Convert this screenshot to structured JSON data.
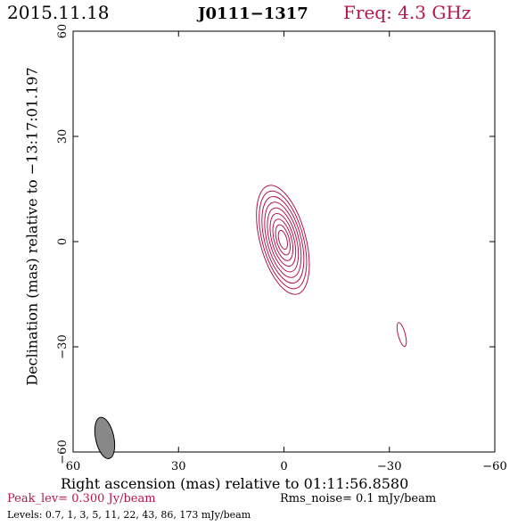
{
  "header": {
    "date": "2015.11.18",
    "source": "J0111−1317",
    "freq": "Freq: 4.3 GHz"
  },
  "footer": {
    "peak": "Peak_lev=  0.300 Jy/beam",
    "rms": "Rms_noise=  0.1 mJy/beam",
    "levels": "Levels: 0.7,   1,   3,   5,  11,  22,  43,  86, 173 mJy/beam"
  },
  "colors": {
    "contour": "#b5174a",
    "beam": "#888888",
    "accent": "#b5174a"
  },
  "chart_data": {
    "type": "contour",
    "xlabel": "Right ascension (mas) relative to 01:11:56.8580",
    "ylabel": "Declination (mas) relative to −13:17:01.197",
    "xlim": [
      60,
      -60
    ],
    "ylim": [
      -60,
      60
    ],
    "xticks": [
      60,
      30,
      0,
      -30,
      -60
    ],
    "yticks": [
      60,
      30,
      0,
      -30,
      -60
    ],
    "xtick_labels": [
      "60",
      "30",
      "0",
      "−30",
      "−60"
    ],
    "ytick_labels": [
      "60",
      "30",
      "0",
      "−30",
      "−60"
    ],
    "levels_mJy": [
      0.7,
      1,
      3,
      5,
      11,
      22,
      43,
      86,
      173
    ],
    "peak_Jy_per_beam": 0.3,
    "rms_mJy_per_beam": 0.1,
    "main_component": {
      "x": 0.3,
      "y": 0.5,
      "major_mas": 16,
      "minor_mas": 6.5,
      "pa_deg": 15
    },
    "secondary_component": {
      "x": -33.5,
      "y": -26.5,
      "major_mas": 3.5,
      "minor_mas": 1
    },
    "beam": {
      "x": 51,
      "y": -56,
      "major_mas": 6,
      "minor_mas": 2.6,
      "pa_deg": 12
    }
  }
}
